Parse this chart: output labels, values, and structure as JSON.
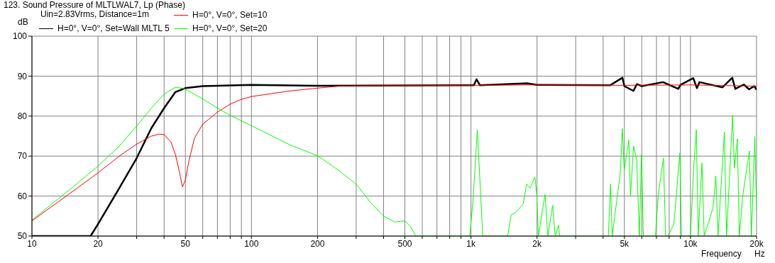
{
  "chart_data": {
    "type": "line",
    "title": "123. Sound Pressure of MLTLWAL7, Lp (Phase)",
    "xlabel": "Frequency",
    "ylabel": "dB",
    "annotations": [
      "Uin=2.83Vrms, Distance=1m",
      "Hz"
    ],
    "log": "x",
    "grid": true,
    "legend": "top",
    "xlim": [
      10,
      20000
    ],
    "ylim": [
      50,
      100
    ],
    "xticks": [
      10,
      20,
      {
        "value": 30,
        "label": null
      },
      {
        "value": 40,
        "label": null
      },
      50,
      {
        "value": 60,
        "label": null
      },
      {
        "value": 70,
        "label": null
      },
      {
        "value": 80,
        "label": null
      },
      {
        "value": 90,
        "label": null
      },
      100,
      200,
      {
        "value": 300,
        "label": null
      },
      {
        "value": 400,
        "label": null
      },
      500,
      {
        "value": 600,
        "label": null
      },
      {
        "value": 700,
        "label": null
      },
      {
        "value": 800,
        "label": null
      },
      {
        "value": 900,
        "label": null
      },
      {
        "value": 1000,
        "label": "1k"
      },
      {
        "value": 2000,
        "label": "2k"
      },
      {
        "value": 3000,
        "label": null
      },
      {
        "value": 4000,
        "label": null
      },
      {
        "value": 5000,
        "label": "5k"
      },
      {
        "value": 6000,
        "label": null
      },
      {
        "value": 7000,
        "label": null
      },
      {
        "value": 8000,
        "label": null
      },
      {
        "value": 9000,
        "label": null
      },
      {
        "value": 10000,
        "label": "10k"
      },
      {
        "value": 20000,
        "label": "20k"
      }
    ],
    "yticks": [
      50,
      60,
      70,
      80,
      90,
      100
    ],
    "series": [
      {
        "name": "H=0°, V=0°, Set=Wall MLTL 5",
        "color": "#000000",
        "x": [
          10,
          18.5,
          20,
          25,
          30,
          35,
          40,
          45,
          50,
          60,
          100,
          200,
          1000,
          1030,
          1060,
          1100,
          1800,
          2000,
          4300,
          4900,
          5000,
          5500,
          5700,
          6000,
          7500,
          8800,
          9000,
          10300,
          10700,
          11000,
          14000,
          15500,
          16000,
          17500,
          18500,
          19500,
          20000
        ],
        "values": [
          50,
          50,
          53,
          62,
          69.5,
          77,
          82,
          86,
          87,
          87.5,
          87.8,
          87.6,
          87.7,
          87.7,
          89.2,
          87.7,
          88.2,
          87.8,
          87.7,
          89.6,
          87.5,
          86.3,
          88,
          87.5,
          88.5,
          86.8,
          87.8,
          89.5,
          87,
          88.5,
          87.2,
          89.6,
          86.8,
          87.9,
          86.7,
          87.5,
          86.6
        ]
      },
      {
        "name": "H=0°, V=0°, Set=10",
        "color": "#ff0000",
        "x": [
          10,
          15,
          20,
          25,
          30,
          35,
          38,
          40,
          43,
          45,
          47,
          48.5,
          50,
          52,
          55,
          60,
          70,
          80,
          90,
          100,
          150,
          200,
          250,
          300,
          1000,
          2000,
          5000,
          10000,
          20000
        ],
        "values": [
          53.8,
          60.8,
          65.8,
          70,
          73,
          75,
          75.5,
          75.4,
          73.5,
          70.5,
          66,
          62.3,
          64,
          69,
          74.5,
          78,
          81,
          83,
          84.2,
          84.9,
          86.3,
          87,
          87.5,
          87.6,
          87.7,
          87.8,
          87.7,
          87.8,
          87.5
        ]
      },
      {
        "name": "H=0°, V=0°, Set=20",
        "color": "#00ff00",
        "x": [
          10,
          15,
          20,
          25,
          30,
          35,
          40,
          45,
          48,
          50,
          60,
          70,
          80,
          100,
          150,
          200,
          240,
          300,
          350,
          400,
          450,
          500,
          530,
          560,
          988,
          1025,
          1069,
          1132,
          1470,
          1525,
          1604,
          1727,
          1793,
          1860,
          1955,
          1995,
          2027,
          2175,
          2240,
          2355,
          2420,
          2505,
          2540,
          4225,
          4325,
          4400,
          4780,
          4897,
          4990,
          5240,
          5330,
          5505,
          5690,
          5850,
          5985,
          6100,
          6925,
          7140,
          7535,
          7700,
          7900,
          8400,
          8945,
          9100,
          10000,
          10330,
          10630,
          10850,
          11280,
          11550,
          12660,
          13050,
          13350,
          14270,
          14600,
          15560,
          15850,
          16350,
          16700,
          17300,
          18550,
          18950,
          19640,
          20000
        ],
        "values": [
          54,
          61.8,
          67.5,
          72.5,
          77.5,
          82,
          85.5,
          87.2,
          87,
          86.7,
          84.3,
          82,
          80.2,
          77.6,
          72.8,
          70.1,
          67.1,
          63,
          58.3,
          55,
          53.5,
          53.8,
          52.4,
          50,
          50,
          60,
          76.6,
          50,
          50,
          55.3,
          56,
          58,
          63,
          62,
          64.8,
          60,
          50,
          60.4,
          50,
          57.7,
          50,
          52.7,
          50,
          50,
          63,
          50,
          65.4,
          76.9,
          66.5,
          74,
          60,
          72.5,
          69,
          50,
          70.4,
          50,
          50,
          60.6,
          69.5,
          50,
          50,
          53,
          70.7,
          50,
          50,
          66.6,
          76.6,
          50,
          68.3,
          50,
          57,
          65,
          50,
          76,
          50,
          80.2,
          67,
          74.3,
          50,
          60,
          71.3,
          50,
          74.9,
          56.5
        ]
      }
    ]
  }
}
